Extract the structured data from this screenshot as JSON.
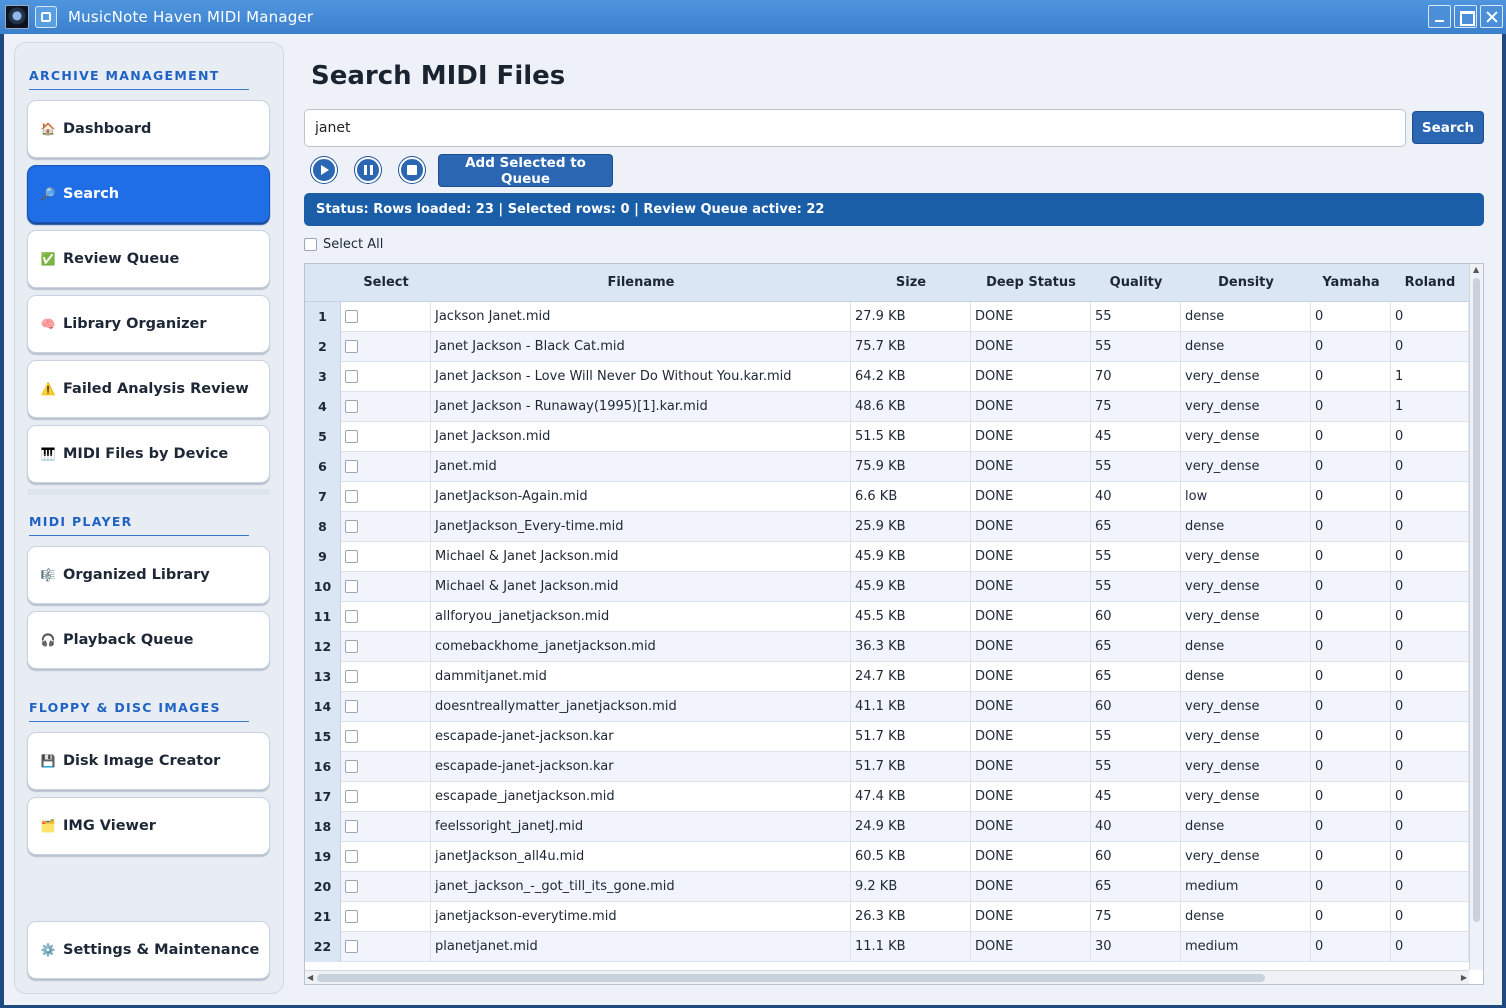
{
  "window": {
    "title": "MusicNote Haven MIDI Manager"
  },
  "sidebar": {
    "sections": [
      {
        "title": "ARCHIVE MANAGEMENT"
      },
      {
        "title": "MIDI PLAYER"
      },
      {
        "title": "FLOPPY & DISC IMAGES"
      }
    ],
    "items": [
      {
        "label": "Dashboard",
        "icon": "🏠",
        "icon_name": "house-icon",
        "active": false
      },
      {
        "label": "Search",
        "icon": "🔎",
        "icon_name": "magnifier-icon",
        "active": true
      },
      {
        "label": "Review Queue",
        "icon": "✅",
        "icon_name": "checkmark-icon",
        "active": false
      },
      {
        "label": "Library Organizer",
        "icon": "🧠",
        "icon_name": "brain-icon",
        "active": false
      },
      {
        "label": "Failed Analysis Review",
        "icon": "⚠️",
        "icon_name": "warning-icon",
        "active": false
      },
      {
        "label": "MIDI Files by Device",
        "icon": "🎹",
        "icon_name": "keyboard-icon",
        "active": false
      },
      {
        "label": "Organized Library",
        "icon": "🎼",
        "icon_name": "music-score-icon",
        "active": false
      },
      {
        "label": "Playback Queue",
        "icon": "🎧",
        "icon_name": "headphones-icon",
        "active": false
      },
      {
        "label": "Disk Image Creator",
        "icon": "💾",
        "icon_name": "floppy-disk-icon",
        "active": false
      },
      {
        "label": "IMG Viewer",
        "icon": "🗂️",
        "icon_name": "folder-icon",
        "active": false
      },
      {
        "label": "Settings & Maintenance",
        "icon": "⚙️",
        "icon_name": "gear-icon",
        "active": false
      }
    ]
  },
  "main": {
    "title": "Search MIDI Files",
    "search": {
      "value": "janet",
      "button_label": "Search"
    },
    "player": {
      "play_icon": "play-icon",
      "pause_icon": "pause-icon",
      "stop_icon": "stop-icon"
    },
    "queue_button_label": "Add Selected to Queue",
    "status": "Status: Rows loaded: 23 | Selected rows: 0 | Review Queue active: 22",
    "select_all_label": "Select All",
    "table": {
      "columns": [
        "Select",
        "Filename",
        "Size",
        "Deep Status",
        "Quality",
        "Density",
        "Yamaha",
        "Roland"
      ],
      "rows": [
        {
          "n": "1",
          "filename": "Jackson Janet.mid",
          "size": "27.9 KB",
          "status": "DONE",
          "quality": "55",
          "density": "dense",
          "yamaha": "0",
          "roland": "0"
        },
        {
          "n": "2",
          "filename": "Janet Jackson - Black Cat.mid",
          "size": "75.7 KB",
          "status": "DONE",
          "quality": "55",
          "density": "dense",
          "yamaha": "0",
          "roland": "0"
        },
        {
          "n": "3",
          "filename": "Janet Jackson - Love Will Never Do Without You.kar.mid",
          "size": "64.2 KB",
          "status": "DONE",
          "quality": "70",
          "density": "very_dense",
          "yamaha": "0",
          "roland": "1"
        },
        {
          "n": "4",
          "filename": "Janet Jackson - Runaway(1995)[1].kar.mid",
          "size": "48.6 KB",
          "status": "DONE",
          "quality": "75",
          "density": "very_dense",
          "yamaha": "0",
          "roland": "1"
        },
        {
          "n": "5",
          "filename": "Janet Jackson.mid",
          "size": "51.5 KB",
          "status": "DONE",
          "quality": "45",
          "density": "very_dense",
          "yamaha": "0",
          "roland": "0"
        },
        {
          "n": "6",
          "filename": "Janet.mid",
          "size": "75.9 KB",
          "status": "DONE",
          "quality": "55",
          "density": "very_dense",
          "yamaha": "0",
          "roland": "0"
        },
        {
          "n": "7",
          "filename": "JanetJackson-Again.mid",
          "size": "6.6 KB",
          "status": "DONE",
          "quality": "40",
          "density": "low",
          "yamaha": "0",
          "roland": "0"
        },
        {
          "n": "8",
          "filename": "JanetJackson_Every-time.mid",
          "size": "25.9 KB",
          "status": "DONE",
          "quality": "65",
          "density": "dense",
          "yamaha": "0",
          "roland": "0"
        },
        {
          "n": "9",
          "filename": "Michael & Janet Jackson.mid",
          "size": "45.9 KB",
          "status": "DONE",
          "quality": "55",
          "density": "very_dense",
          "yamaha": "0",
          "roland": "0"
        },
        {
          "n": "10",
          "filename": "Michael & Janet Jackson.mid",
          "size": "45.9 KB",
          "status": "DONE",
          "quality": "55",
          "density": "very_dense",
          "yamaha": "0",
          "roland": "0"
        },
        {
          "n": "11",
          "filename": "allforyou_janetjackson.mid",
          "size": "45.5 KB",
          "status": "DONE",
          "quality": "60",
          "density": "very_dense",
          "yamaha": "0",
          "roland": "0"
        },
        {
          "n": "12",
          "filename": "comebackhome_janetjackson.mid",
          "size": "36.3 KB",
          "status": "DONE",
          "quality": "65",
          "density": "dense",
          "yamaha": "0",
          "roland": "0"
        },
        {
          "n": "13",
          "filename": "dammitjanet.mid",
          "size": "24.7 KB",
          "status": "DONE",
          "quality": "65",
          "density": "dense",
          "yamaha": "0",
          "roland": "0"
        },
        {
          "n": "14",
          "filename": "doesntreallymatter_janetjackson.mid",
          "size": "41.1 KB",
          "status": "DONE",
          "quality": "60",
          "density": "very_dense",
          "yamaha": "0",
          "roland": "0"
        },
        {
          "n": "15",
          "filename": "escapade-janet-jackson.kar",
          "size": "51.7 KB",
          "status": "DONE",
          "quality": "55",
          "density": "very_dense",
          "yamaha": "0",
          "roland": "0"
        },
        {
          "n": "16",
          "filename": "escapade-janet-jackson.kar",
          "size": "51.7 KB",
          "status": "DONE",
          "quality": "55",
          "density": "very_dense",
          "yamaha": "0",
          "roland": "0"
        },
        {
          "n": "17",
          "filename": "escapade_janetjackson.mid",
          "size": "47.4 KB",
          "status": "DONE",
          "quality": "45",
          "density": "very_dense",
          "yamaha": "0",
          "roland": "0"
        },
        {
          "n": "18",
          "filename": "feelssoright_janetJ.mid",
          "size": "24.9 KB",
          "status": "DONE",
          "quality": "40",
          "density": "dense",
          "yamaha": "0",
          "roland": "0"
        },
        {
          "n": "19",
          "filename": "janetJackson_all4u.mid",
          "size": "60.5 KB",
          "status": "DONE",
          "quality": "60",
          "density": "very_dense",
          "yamaha": "0",
          "roland": "0"
        },
        {
          "n": "20",
          "filename": "janet_jackson_-_got_till_its_gone.mid",
          "size": "9.2 KB",
          "status": "DONE",
          "quality": "65",
          "density": "medium",
          "yamaha": "0",
          "roland": "0"
        },
        {
          "n": "21",
          "filename": "janetjackson-everytime.mid",
          "size": "26.3 KB",
          "status": "DONE",
          "quality": "75",
          "density": "dense",
          "yamaha": "0",
          "roland": "0"
        },
        {
          "n": "22",
          "filename": "planetjanet.mid",
          "size": "11.1 KB",
          "status": "DONE",
          "quality": "30",
          "density": "medium",
          "yamaha": "0",
          "roland": "0"
        }
      ]
    }
  }
}
